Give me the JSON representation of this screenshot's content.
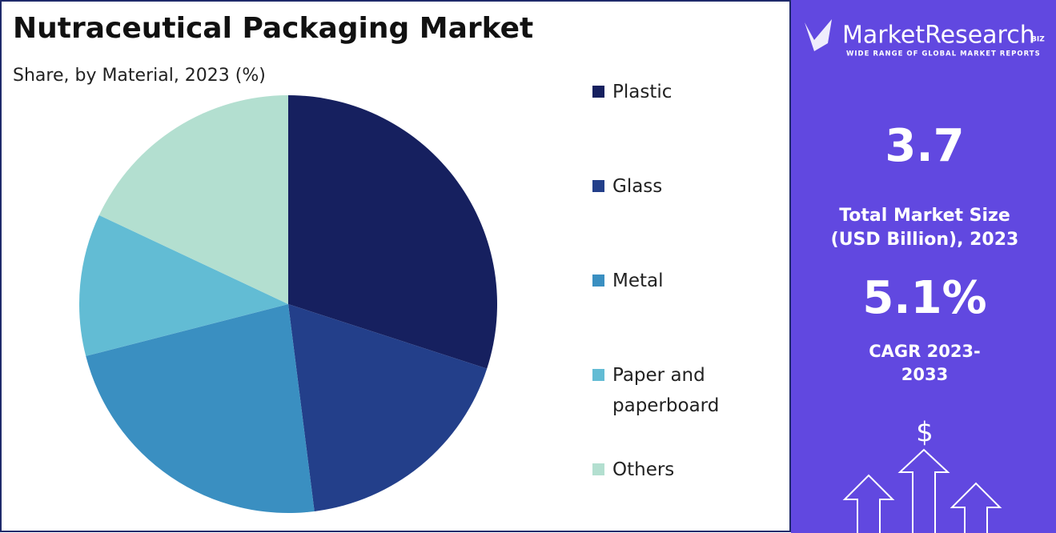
{
  "chart_data": {
    "type": "pie",
    "title": "Nutraceutical Packaging Market",
    "subtitle": "Share, by Material, 2023 (%)",
    "categories": [
      "Plastic",
      "Glass",
      "Metal",
      "Paper and paperboard",
      "Others"
    ],
    "values": [
      30,
      18,
      23,
      11,
      18
    ],
    "colors": [
      "#16205f",
      "#233f8a",
      "#3a8fc1",
      "#62bcd4",
      "#b3dfd0"
    ]
  },
  "sidebar": {
    "brand": "MarketResearch",
    "brand_suffix": "BIZ",
    "tagline": "WIDE RANGE OF GLOBAL MARKET REPORTS",
    "market_size": "3.7",
    "market_size_label": "Total Market Size (USD Billion), 2023",
    "cagr": "5.1%",
    "cagr_label": "CAGR 2023-2033",
    "icon": "$"
  }
}
